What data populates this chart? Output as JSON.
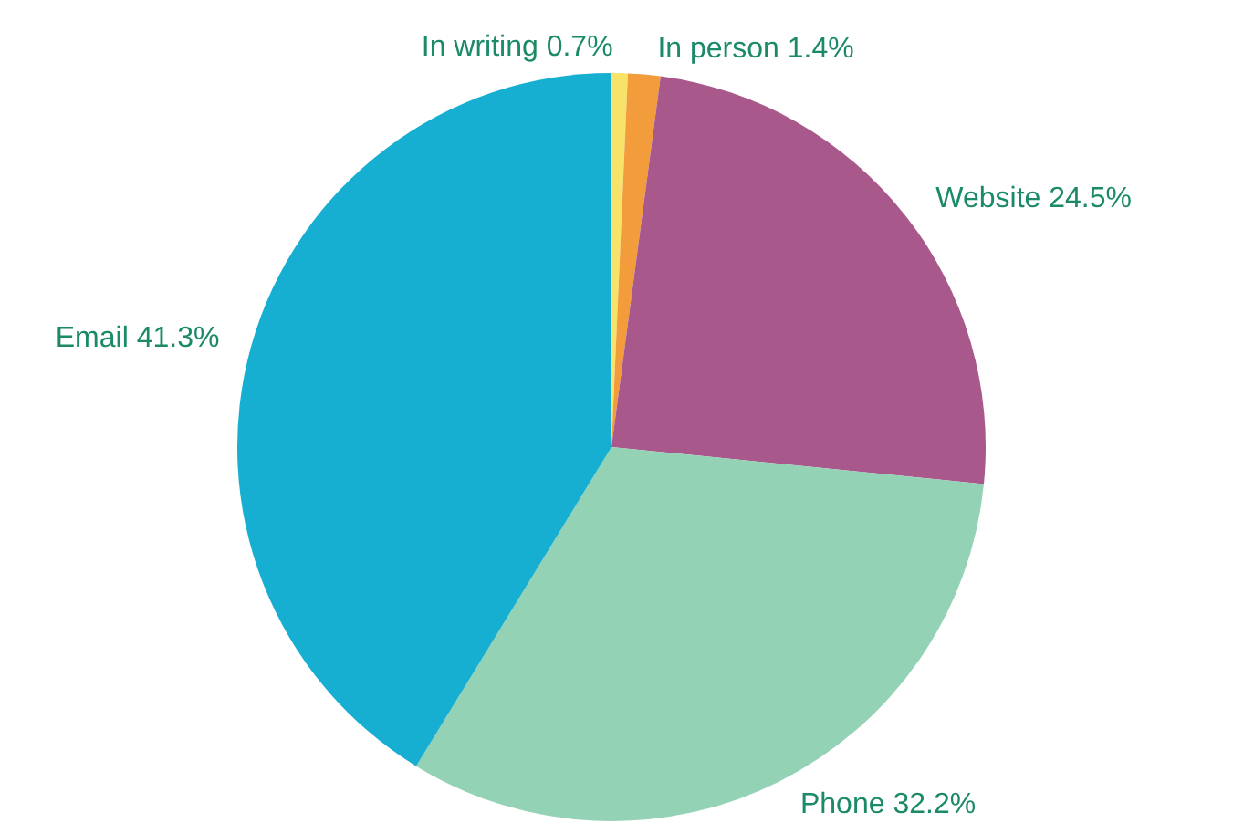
{
  "chart_data": {
    "type": "pie",
    "categories": [
      "In writing",
      "In person",
      "Website",
      "Phone",
      "Email"
    ],
    "values": [
      0.7,
      1.4,
      24.5,
      32.2,
      41.3
    ],
    "colors": [
      "#f7e36a",
      "#f39c3c",
      "#a9588b",
      "#93d2b5",
      "#16aed1"
    ],
    "value_labels": [
      "0.7%",
      "1.4%",
      "24.5%",
      "32.2%",
      "41.3%"
    ],
    "legend": false
  }
}
